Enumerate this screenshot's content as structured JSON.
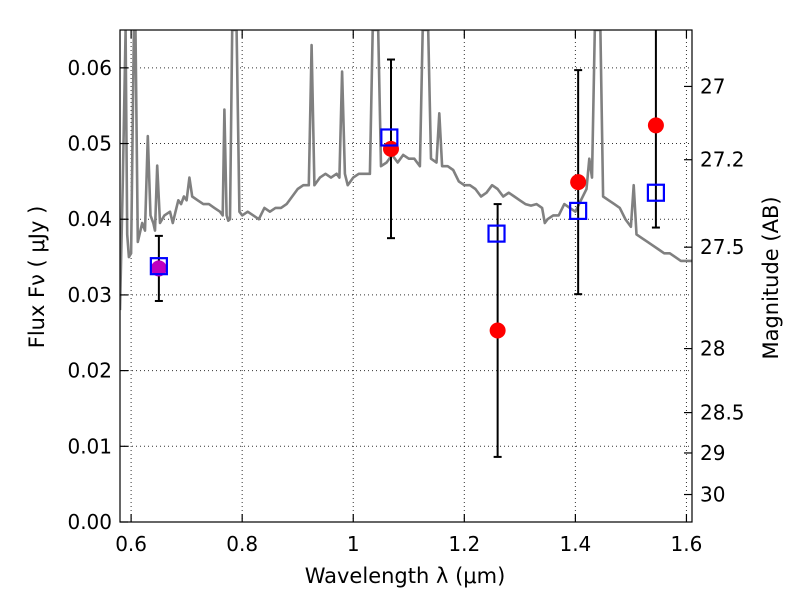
{
  "chart_data": {
    "type": "scatter",
    "xlabel": "Wavelength  λ (μm)",
    "ylabel": "Flux  Fν  ( μJy )",
    "ylabel_right": "Magnitude (AB)",
    "xlim": [
      0.58,
      1.61
    ],
    "ylim": [
      0.0,
      0.065
    ],
    "x_ticks": [
      0.6,
      0.8,
      1.0,
      1.2,
      1.4,
      1.6
    ],
    "x_tick_labels": [
      "0.6",
      "0.8",
      "1",
      "1.2",
      "1.4",
      "1.6"
    ],
    "y_ticks": [
      0.0,
      0.01,
      0.02,
      0.03,
      0.04,
      0.05,
      0.06
    ],
    "y_tick_labels": [
      "0.00",
      "0.01",
      "0.02",
      "0.03",
      "0.04",
      "0.05",
      "0.06"
    ],
    "right_ticks": [
      {
        "value": 27,
        "label": "27"
      },
      {
        "value": 27.2,
        "label": "27.2"
      },
      {
        "value": 27.5,
        "label": "27.5"
      },
      {
        "value": 28,
        "label": "28"
      },
      {
        "value": 28.5,
        "label": "28.5"
      },
      {
        "value": 29,
        "label": "29"
      },
      {
        "value": 30,
        "label": "30"
      }
    ],
    "grid": true,
    "colors": {
      "spectrum": "#808080",
      "observed": "#ff0000",
      "observed_first": "#bf00bf",
      "model": "#0000ff",
      "errorbar": "#000000"
    },
    "observed": [
      {
        "x": 0.65,
        "y": 0.0335,
        "err": 0.0043
      },
      {
        "x": 1.068,
        "y": 0.0493,
        "err": 0.0118
      },
      {
        "x": 1.26,
        "y": 0.0253,
        "err": 0.0167
      },
      {
        "x": 1.405,
        "y": 0.0449,
        "err": 0.0148
      },
      {
        "x": 1.545,
        "y": 0.0524,
        "err": 0.0135
      }
    ],
    "model_photometry": [
      {
        "x": 0.65,
        "y": 0.0338
      },
      {
        "x": 1.065,
        "y": 0.0508
      },
      {
        "x": 1.258,
        "y": 0.0381
      },
      {
        "x": 1.405,
        "y": 0.0411
      },
      {
        "x": 1.545,
        "y": 0.0435
      }
    ],
    "spectrum": [
      [
        0.58,
        0.028
      ],
      [
        0.585,
        0.045
      ],
      [
        0.59,
        0.065
      ],
      [
        0.593,
        0.038
      ],
      [
        0.596,
        0.035
      ],
      [
        0.6,
        0.0355
      ],
      [
        0.605,
        0.065
      ],
      [
        0.608,
        0.065
      ],
      [
        0.612,
        0.037
      ],
      [
        0.62,
        0.0395
      ],
      [
        0.625,
        0.0385
      ],
      [
        0.63,
        0.051
      ],
      [
        0.635,
        0.0405
      ],
      [
        0.64,
        0.0395
      ],
      [
        0.643,
        0.0385
      ],
      [
        0.647,
        0.0471
      ],
      [
        0.652,
        0.0395
      ],
      [
        0.66,
        0.0405
      ],
      [
        0.67,
        0.041
      ],
      [
        0.675,
        0.0395
      ],
      [
        0.68,
        0.041
      ],
      [
        0.685,
        0.0425
      ],
      [
        0.69,
        0.042
      ],
      [
        0.695,
        0.043
      ],
      [
        0.7,
        0.0425
      ],
      [
        0.705,
        0.0455
      ],
      [
        0.71,
        0.043
      ],
      [
        0.72,
        0.0425
      ],
      [
        0.73,
        0.042
      ],
      [
        0.74,
        0.042
      ],
      [
        0.75,
        0.0415
      ],
      [
        0.76,
        0.041
      ],
      [
        0.765,
        0.0405
      ],
      [
        0.768,
        0.0545
      ],
      [
        0.772,
        0.0405
      ],
      [
        0.775,
        0.0398
      ],
      [
        0.778,
        0.04
      ],
      [
        0.782,
        0.065
      ],
      [
        0.79,
        0.065
      ],
      [
        0.795,
        0.041
      ],
      [
        0.8,
        0.0405
      ],
      [
        0.81,
        0.041
      ],
      [
        0.82,
        0.0405
      ],
      [
        0.83,
        0.04
      ],
      [
        0.84,
        0.0415
      ],
      [
        0.85,
        0.041
      ],
      [
        0.86,
        0.0415
      ],
      [
        0.87,
        0.0415
      ],
      [
        0.88,
        0.042
      ],
      [
        0.89,
        0.043
      ],
      [
        0.9,
        0.044
      ],
      [
        0.91,
        0.0445
      ],
      [
        0.92,
        0.0445
      ],
      [
        0.925,
        0.063
      ],
      [
        0.93,
        0.0445
      ],
      [
        0.94,
        0.0455
      ],
      [
        0.95,
        0.046
      ],
      [
        0.96,
        0.0455
      ],
      [
        0.97,
        0.046
      ],
      [
        0.975,
        0.0455
      ],
      [
        0.98,
        0.0595
      ],
      [
        0.985,
        0.046
      ],
      [
        0.99,
        0.0445
      ],
      [
        1.0,
        0.0455
      ],
      [
        1.01,
        0.046
      ],
      [
        1.02,
        0.046
      ],
      [
        1.03,
        0.046
      ],
      [
        1.035,
        0.065
      ],
      [
        1.045,
        0.065
      ],
      [
        1.05,
        0.047
      ],
      [
        1.06,
        0.0475
      ],
      [
        1.07,
        0.0485
      ],
      [
        1.08,
        0.0475
      ],
      [
        1.09,
        0.0485
      ],
      [
        1.1,
        0.048
      ],
      [
        1.11,
        0.048
      ],
      [
        1.115,
        0.0475
      ],
      [
        1.12,
        0.047
      ],
      [
        1.125,
        0.065
      ],
      [
        1.135,
        0.065
      ],
      [
        1.14,
        0.048
      ],
      [
        1.15,
        0.0475
      ],
      [
        1.155,
        0.054
      ],
      [
        1.16,
        0.047
      ],
      [
        1.17,
        0.047
      ],
      [
        1.18,
        0.0465
      ],
      [
        1.19,
        0.045
      ],
      [
        1.2,
        0.0445
      ],
      [
        1.21,
        0.0445
      ],
      [
        1.22,
        0.044
      ],
      [
        1.23,
        0.043
      ],
      [
        1.24,
        0.0435
      ],
      [
        1.25,
        0.0445
      ],
      [
        1.26,
        0.044
      ],
      [
        1.27,
        0.043
      ],
      [
        1.28,
        0.0435
      ],
      [
        1.29,
        0.043
      ],
      [
        1.3,
        0.0425
      ],
      [
        1.31,
        0.042
      ],
      [
        1.32,
        0.0418
      ],
      [
        1.33,
        0.042
      ],
      [
        1.34,
        0.0415
      ],
      [
        1.345,
        0.0395
      ],
      [
        1.35,
        0.04
      ],
      [
        1.36,
        0.0405
      ],
      [
        1.37,
        0.0405
      ],
      [
        1.38,
        0.042
      ],
      [
        1.39,
        0.0415
      ],
      [
        1.4,
        0.041
      ],
      [
        1.41,
        0.0425
      ],
      [
        1.42,
        0.044
      ],
      [
        1.425,
        0.048
      ],
      [
        1.43,
        0.0455
      ],
      [
        1.435,
        0.065
      ],
      [
        1.445,
        0.065
      ],
      [
        1.45,
        0.043
      ],
      [
        1.46,
        0.0425
      ],
      [
        1.47,
        0.042
      ],
      [
        1.48,
        0.0415
      ],
      [
        1.49,
        0.04
      ],
      [
        1.5,
        0.039
      ],
      [
        1.505,
        0.0445
      ],
      [
        1.51,
        0.038
      ],
      [
        1.52,
        0.0375
      ],
      [
        1.53,
        0.037
      ],
      [
        1.54,
        0.0365
      ],
      [
        1.55,
        0.036
      ],
      [
        1.56,
        0.0355
      ],
      [
        1.57,
        0.0355
      ],
      [
        1.58,
        0.035
      ],
      [
        1.59,
        0.0345
      ],
      [
        1.61,
        0.0345
      ]
    ]
  }
}
